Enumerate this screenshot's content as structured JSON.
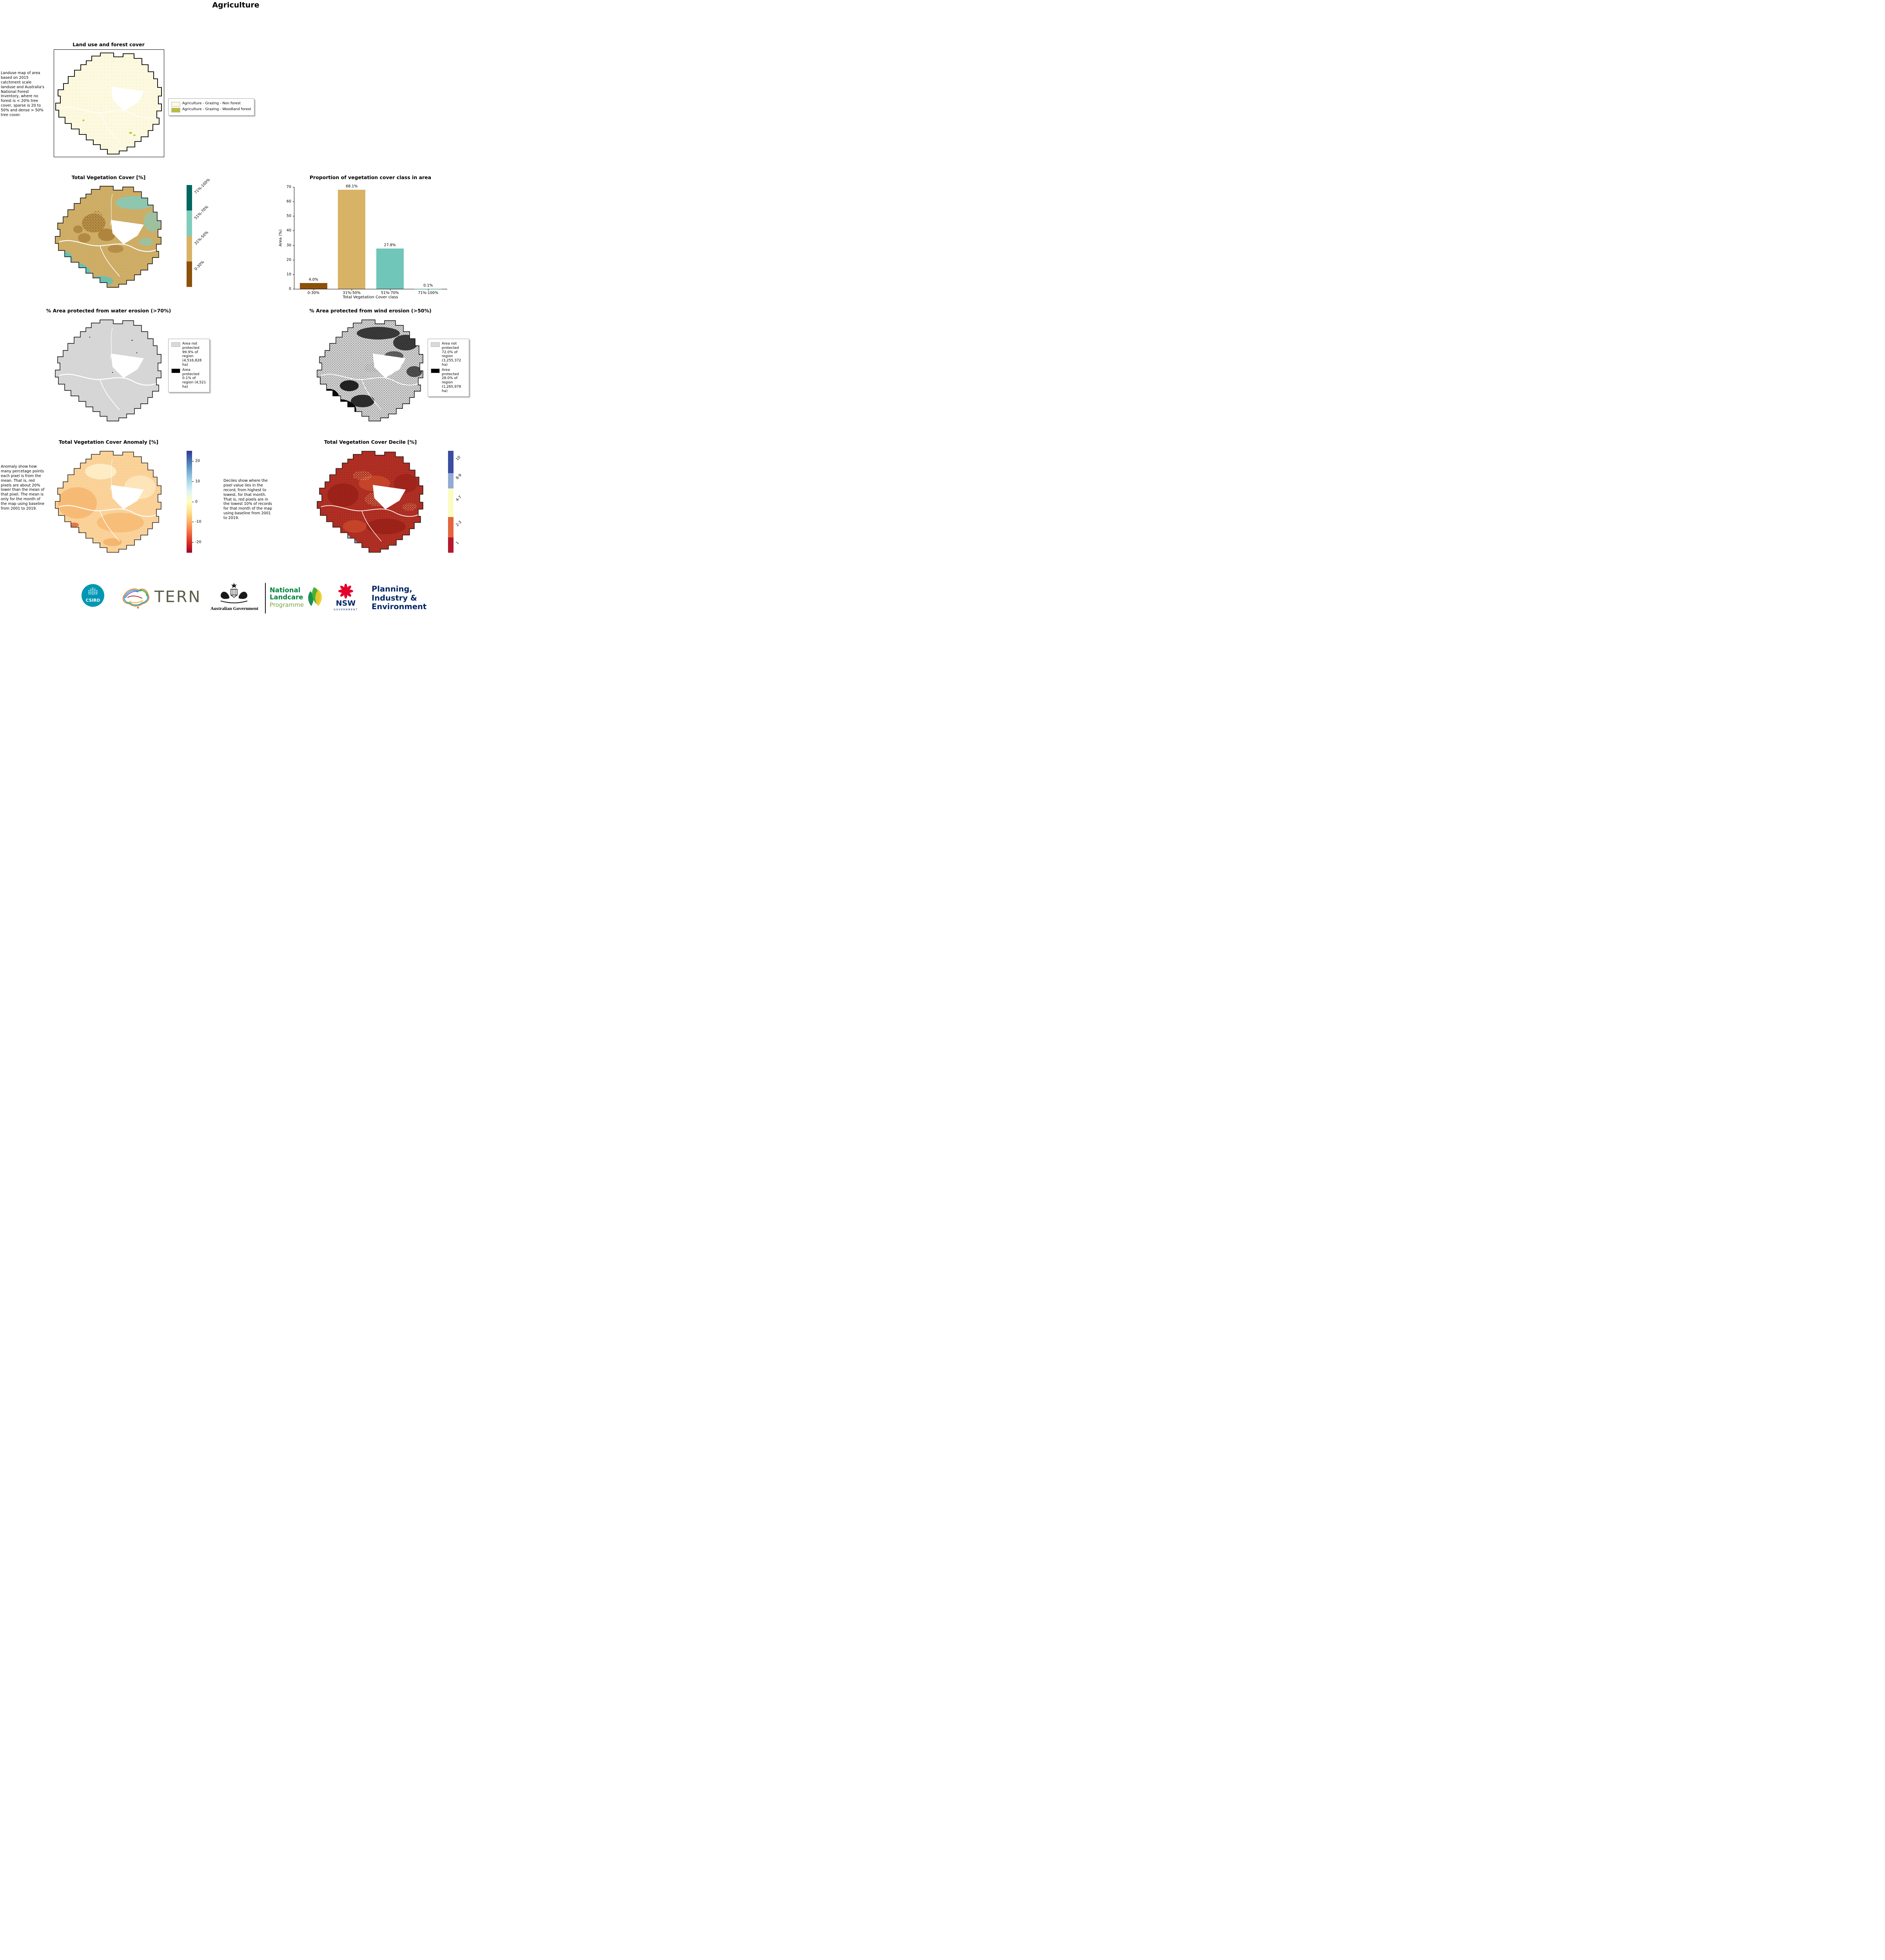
{
  "page": {
    "title": "Agriculture"
  },
  "landuse": {
    "title": "Land use and forest cover",
    "description": "Landuse map of area based on 2015 catchment scale landuse and Australia's National Forest Inventory, where no forest is < 20% tree cover, sparse is 20 to 50% and dense > 50% tree cover.",
    "legend": [
      {
        "label": "Agriculture - Grazing - Non forest",
        "color": "#fdfbdc"
      },
      {
        "label": "Agriculture - Grazing - Woodland forest",
        "color": "#b9bd3d"
      }
    ]
  },
  "veg_cover": {
    "title": "Total Vegetation Cover [%]",
    "colorbar": [
      {
        "label": "71%-100%",
        "color": "#01665e"
      },
      {
        "label": "51%-70%",
        "color": "#7fcdbb"
      },
      {
        "label": "31%-50%",
        "color": "#d8b365"
      },
      {
        "label": "0-30%",
        "color": "#8c510a"
      }
    ]
  },
  "chart_data": {
    "type": "bar",
    "title": "Proportion of vegetation cover class in area",
    "categories": [
      "0-30%",
      "31%-50%",
      "51%-70%",
      "71%-100%"
    ],
    "values": [
      4.0,
      68.1,
      27.8,
      0.1
    ],
    "value_labels": [
      "4.0%",
      "68.1%",
      "27.8%",
      "0.1%"
    ],
    "bar_colors": [
      "#8c510a",
      "#d8b365",
      "#70c6b9",
      "#01665e"
    ],
    "xlabel": "Total Vegetation Cover class",
    "ylabel": "Area (%)",
    "ylim": [
      0,
      70
    ],
    "yticks": [
      "70",
      "60",
      "50",
      "40",
      "30",
      "20",
      "10",
      "0"
    ],
    "legend_position": "none",
    "grid": false
  },
  "water_erosion": {
    "title": "% Area protected from water erosion (>70%)",
    "legend": [
      {
        "label": "Area not protected 99.9% of region (4,516,828 ha)",
        "color": "#d9d9d9"
      },
      {
        "label": "Area protected 0.1% of region (4,521 ha)",
        "color": "#000000"
      }
    ]
  },
  "wind_erosion": {
    "title": "% Area protected from wind erosion (>50%)",
    "legend": [
      {
        "label": "Area not protected 72.0% of region (3,255,372 ha)",
        "color": "#d9d9d9"
      },
      {
        "label": "Area protected 28.0% of region (1,265,978 ha)",
        "color": "#000000"
      }
    ]
  },
  "anomaly": {
    "title": "Total Vegetation Cover Anomaly [%]",
    "description": "Anomaly show how many percetage points each pixel is from the mean. That is, red pixels are about 20% lower than the mean of that pixel. The mean is only for the month of the map using baseline from 2001 to 2019.",
    "colorbar_ticks": [
      "20",
      "10",
      "0",
      "-10",
      "-20"
    ],
    "colormap": [
      "#a50026",
      "#d73027",
      "#f46d43",
      "#fdae61",
      "#fee090",
      "#ffffbf",
      "#e0f3f8",
      "#abd9e9",
      "#74add1",
      "#4575b4",
      "#313695"
    ]
  },
  "decile": {
    "title": "Total Vegetation Cover Decile [%]",
    "description": "Deciles show where the pixel value lies in the record, from highest to lowest, for that month. That is, red pixels are in the lowest 10% of records for that month of the map using baseline from 2001 to 2019.",
    "colorbar": [
      {
        "label": "10",
        "color": "#3b4da0"
      },
      {
        "label": "8-9",
        "color": "#94a9d4"
      },
      {
        "label": "4-7",
        "color": "#fbfcc4"
      },
      {
        "label": "2-3",
        "color": "#e4653f"
      },
      {
        "label": "1",
        "color": "#b5182b"
      }
    ]
  },
  "footer": {
    "csiro": "CSIRO",
    "tern": "TERN",
    "aus_gov": "Australian Government",
    "landcare_line1": "National",
    "landcare_line2": "Landcare",
    "landcare_line3": "Programme",
    "nsw": "NSW",
    "nsw_government": "GOVERNMENT",
    "planning_line1": "Planning,",
    "planning_line2": "Industry &",
    "planning_line3": "Environment"
  }
}
